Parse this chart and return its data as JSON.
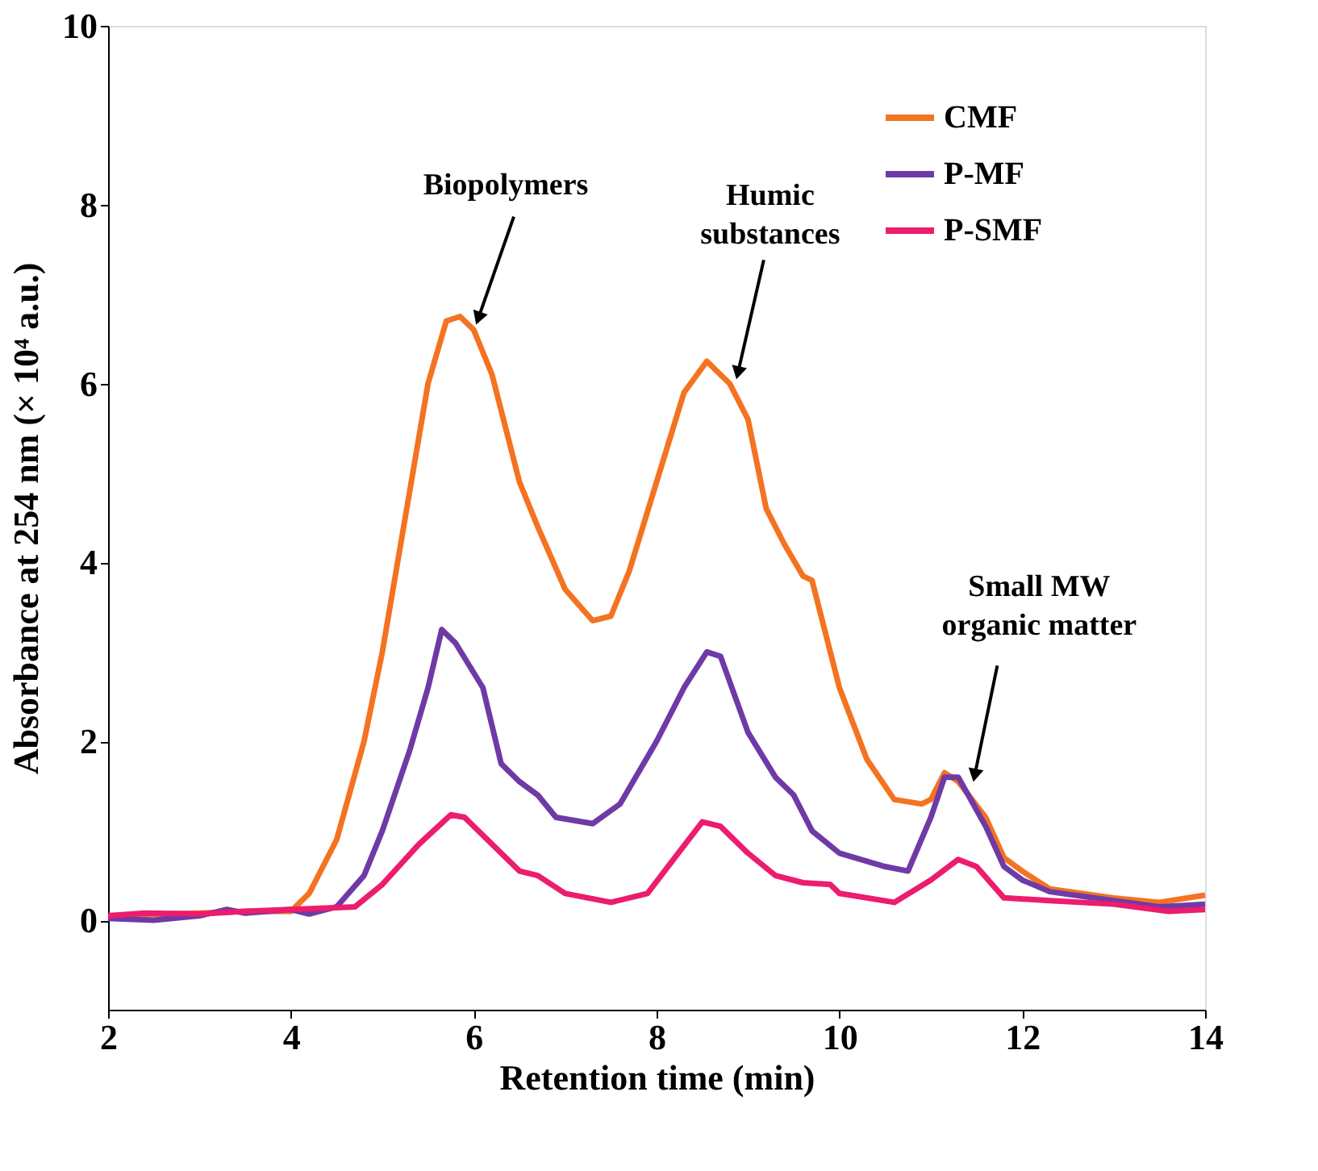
{
  "chart_data": {
    "type": "line",
    "xlabel": "Retention time (min)",
    "ylabel": "Absorbance at 254 nm (× 10⁴ a.u.)",
    "xlim": [
      2,
      14
    ],
    "xticks": [
      2,
      4,
      6,
      8,
      10,
      12,
      14
    ],
    "ylim": [
      -1,
      10
    ],
    "yticks": [
      0,
      2,
      4,
      6,
      8,
      10
    ],
    "grid": false,
    "legend": "top right",
    "marker": "none",
    "line_style": "solid",
    "series": [
      {
        "name": "CMF",
        "color": "#f47321",
        "x": [
          2.0,
          3.0,
          3.5,
          4.0,
          4.2,
          4.5,
          4.8,
          5.0,
          5.3,
          5.5,
          5.7,
          5.85,
          6.0,
          6.2,
          6.5,
          6.7,
          7.0,
          7.3,
          7.5,
          7.7,
          8.0,
          8.3,
          8.55,
          8.8,
          9.0,
          9.2,
          9.4,
          9.6,
          9.7,
          10.0,
          10.3,
          10.6,
          10.9,
          11.0,
          11.15,
          11.3,
          11.6,
          11.8,
          12.0,
          12.3,
          13.0,
          13.5,
          14.0
        ],
        "values": [
          0.05,
          0.08,
          0.1,
          0.1,
          0.3,
          0.9,
          2.0,
          3.0,
          4.8,
          6.0,
          6.7,
          6.75,
          6.6,
          6.1,
          4.9,
          4.4,
          3.7,
          3.35,
          3.4,
          3.9,
          4.9,
          5.9,
          6.25,
          6.0,
          5.6,
          4.6,
          4.2,
          3.85,
          3.8,
          2.6,
          1.8,
          1.35,
          1.3,
          1.35,
          1.65,
          1.55,
          1.15,
          0.7,
          0.55,
          0.35,
          0.25,
          0.2,
          0.28
        ]
      },
      {
        "name": "P-MF",
        "color": "#6f3aa6",
        "x": [
          2.0,
          2.5,
          3.0,
          3.3,
          3.5,
          4.0,
          4.2,
          4.5,
          4.8,
          5.0,
          5.3,
          5.5,
          5.65,
          5.8,
          6.1,
          6.3,
          6.5,
          6.7,
          6.9,
          7.3,
          7.6,
          8.0,
          8.3,
          8.55,
          8.7,
          9.0,
          9.3,
          9.5,
          9.7,
          10.0,
          10.5,
          10.75,
          11.0,
          11.15,
          11.3,
          11.6,
          11.8,
          12.0,
          12.3,
          13.0,
          13.5,
          14.0
        ],
        "values": [
          0.02,
          0.0,
          0.05,
          0.12,
          0.08,
          0.12,
          0.07,
          0.15,
          0.5,
          1.0,
          1.9,
          2.6,
          3.25,
          3.1,
          2.6,
          1.75,
          1.55,
          1.4,
          1.15,
          1.08,
          1.3,
          2.0,
          2.6,
          3.0,
          2.95,
          2.1,
          1.6,
          1.4,
          1.0,
          0.75,
          0.6,
          0.55,
          1.15,
          1.6,
          1.6,
          1.05,
          0.6,
          0.45,
          0.32,
          0.22,
          0.15,
          0.18
        ]
      },
      {
        "name": "P-SMF",
        "color": "#ec1c6e",
        "x": [
          2.0,
          2.4,
          3.0,
          3.5,
          4.0,
          4.7,
          5.0,
          5.4,
          5.75,
          5.9,
          6.2,
          6.5,
          6.7,
          7.0,
          7.5,
          7.9,
          8.2,
          8.5,
          8.7,
          9.0,
          9.3,
          9.6,
          9.9,
          10.0,
          10.6,
          11.0,
          11.3,
          11.5,
          11.8,
          12.3,
          13.0,
          13.6,
          14.0
        ],
        "values": [
          0.05,
          0.08,
          0.07,
          0.1,
          0.12,
          0.15,
          0.4,
          0.85,
          1.18,
          1.15,
          0.85,
          0.55,
          0.5,
          0.3,
          0.2,
          0.3,
          0.7,
          1.1,
          1.05,
          0.75,
          0.5,
          0.42,
          0.4,
          0.3,
          0.2,
          0.45,
          0.68,
          0.6,
          0.25,
          0.22,
          0.18,
          0.1,
          0.12
        ]
      }
    ],
    "annotations": [
      {
        "text": "Biopolymers",
        "x": 6.05,
        "y": 6.73
      },
      {
        "text": "Humic\nsubstances",
        "x": 8.89,
        "y": 6.12
      },
      {
        "text": "Small MW\norganic matter",
        "x": 11.48,
        "y": 1.62
      }
    ]
  }
}
